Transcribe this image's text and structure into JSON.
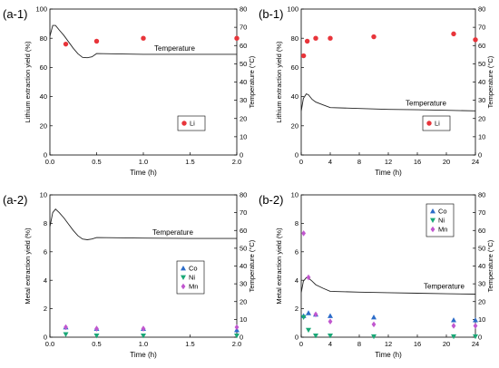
{
  "chart_data": [
    {
      "type": "scatter",
      "panel_label": "(a-1)",
      "xlabel": "Time (h)",
      "ylabel": "Lithium extraction yield (%)",
      "y2label": "Temperature (°C)",
      "xlim": [
        0,
        2
      ],
      "ylim": [
        0,
        100
      ],
      "y2lim": [
        0,
        80
      ],
      "xticks": [
        "0.0",
        "0.5",
        "1.0",
        "1.5",
        "2.0"
      ],
      "yticks": [
        "0",
        "20",
        "40",
        "60",
        "80",
        "100"
      ],
      "y2ticks": [
        "0",
        "10",
        "20",
        "30",
        "40",
        "50",
        "60",
        "70",
        "80"
      ],
      "legend_position": "middle-right",
      "series": [
        {
          "name": "Li",
          "marker": "circle",
          "color": "#e8343a",
          "x": [
            0.17,
            0.5,
            1.0,
            2.0
          ],
          "y": [
            76,
            78,
            80,
            80
          ]
        }
      ],
      "temperature_line": {
        "label": "Temperature",
        "x": [
          0,
          0.03,
          0.06,
          0.1,
          0.15,
          0.2,
          0.25,
          0.3,
          0.35,
          0.4,
          0.45,
          0.5,
          1.0,
          1.5,
          2.0
        ],
        "y": [
          65,
          71,
          71,
          68.5,
          65.5,
          62,
          58.5,
          55.5,
          53.5,
          53.3,
          53.8,
          55.6,
          55.2,
          55.2,
          55.2
        ]
      }
    },
    {
      "type": "scatter",
      "panel_label": "(b-1)",
      "xlabel": "Time (h)",
      "ylabel": "Lithium extraction yield (%)",
      "y2label": "Temperature (°C)",
      "xlim": [
        0,
        24
      ],
      "ylim": [
        0,
        100
      ],
      "y2lim": [
        0,
        80
      ],
      "xticks": [
        "0",
        "4",
        "8",
        "12",
        "16",
        "20",
        "24"
      ],
      "yticks": [
        "0",
        "20",
        "40",
        "60",
        "80",
        "100"
      ],
      "y2ticks": [
        "0",
        "10",
        "20",
        "30",
        "40",
        "50",
        "60",
        "70",
        "80"
      ],
      "legend_position": "middle-right",
      "series": [
        {
          "name": "Li",
          "marker": "circle",
          "color": "#e8343a",
          "x": [
            0.33,
            0.83,
            2,
            4,
            10,
            21,
            24
          ],
          "y": [
            68,
            78,
            80,
            80,
            81,
            83,
            79
          ]
        }
      ],
      "temperature_line": {
        "label": "Temperature",
        "x": [
          0,
          0.3,
          0.7,
          1.0,
          1.5,
          2,
          3,
          4,
          8,
          12,
          16,
          20,
          24
        ],
        "y": [
          24,
          31,
          33.5,
          33,
          30.5,
          29,
          27.5,
          26,
          25.5,
          25,
          24.8,
          24.5,
          24.2
        ]
      }
    },
    {
      "type": "scatter",
      "panel_label": "(a-2)",
      "xlabel": "Time (h)",
      "ylabel": "Metal extraction yield (%)",
      "y2label": "Temperature (°C)",
      "xlim": [
        0,
        2
      ],
      "ylim": [
        0,
        10
      ],
      "y2lim": [
        0,
        80
      ],
      "xticks": [
        "0.0",
        "0.5",
        "1.0",
        "1.5",
        "2.0"
      ],
      "yticks": [
        "0",
        "2",
        "4",
        "6",
        "8",
        "10"
      ],
      "y2ticks": [
        "0",
        "10",
        "20",
        "30",
        "40",
        "50",
        "60",
        "70",
        "80"
      ],
      "legend_position": "lower-right",
      "series": [
        {
          "name": "Co",
          "marker": "triangle-up",
          "color": "#2b6cc9",
          "x": [
            0.17,
            0.5,
            1.0,
            2.0
          ],
          "y": [
            0.7,
            0.6,
            0.6,
            0.5
          ]
        },
        {
          "name": "Ni",
          "marker": "triangle-down",
          "color": "#1aa877",
          "x": [
            0.17,
            0.5,
            1.0,
            2.0
          ],
          "y": [
            0.2,
            0.1,
            0.1,
            0.1
          ]
        },
        {
          "name": "Mn",
          "marker": "diamond",
          "color": "#c157cf",
          "x": [
            0.17,
            0.5,
            1.0,
            2.0
          ],
          "y": [
            0.7,
            0.6,
            0.6,
            0.7
          ]
        }
      ],
      "temperature_line": {
        "label": "Temperature",
        "x": [
          0,
          0.03,
          0.06,
          0.1,
          0.15,
          0.2,
          0.25,
          0.3,
          0.35,
          0.4,
          0.45,
          0.5,
          1.0,
          1.5,
          2.0
        ],
        "y": [
          62,
          70,
          72,
          70,
          67,
          63.5,
          60,
          57,
          55.2,
          54.8,
          55.2,
          56,
          55.7,
          55.5,
          55.5
        ]
      }
    },
    {
      "type": "scatter",
      "panel_label": "(b-2)",
      "xlabel": "Time (h)",
      "ylabel": "Metal extraction yield (%)",
      "y2label": "Temperature (°C)",
      "xlim": [
        0,
        24
      ],
      "ylim": [
        0,
        10
      ],
      "y2lim": [
        0,
        80
      ],
      "xticks": [
        "0",
        "4",
        "8",
        "12",
        "16",
        "20",
        "24"
      ],
      "yticks": [
        "0",
        "2",
        "4",
        "6",
        "8",
        "10"
      ],
      "y2ticks": [
        "0",
        "10",
        "20",
        "30",
        "40",
        "50",
        "60",
        "70",
        "80"
      ],
      "legend_position": "top-right",
      "series": [
        {
          "name": "Co",
          "marker": "triangle-up",
          "color": "#2b6cc9",
          "x": [
            0.33,
            1,
            2,
            4,
            10,
            21,
            24
          ],
          "y": [
            1.5,
            1.7,
            1.6,
            1.5,
            1.4,
            1.2,
            1.2
          ]
        },
        {
          "name": "Ni",
          "marker": "triangle-down",
          "color": "#1aa877",
          "x": [
            0.33,
            1,
            2,
            4,
            10,
            21,
            24
          ],
          "y": [
            1.4,
            0.5,
            0.1,
            0.1,
            0.05,
            0.05,
            0.05
          ]
        },
        {
          "name": "Mn",
          "marker": "diamond",
          "color": "#c157cf",
          "x": [
            0.33,
            1,
            2,
            4,
            10,
            21,
            24
          ],
          "y": [
            7.3,
            4.2,
            1.6,
            1.1,
            0.9,
            0.8,
            0.8
          ]
        }
      ],
      "temperature_line": {
        "label": "Temperature",
        "x": [
          0,
          0.3,
          0.7,
          1.0,
          1.5,
          2,
          3,
          4,
          8,
          12,
          16,
          20,
          24
        ],
        "y": [
          25,
          31.5,
          33.5,
          33.2,
          31.5,
          29.5,
          27.5,
          25.8,
          25.3,
          25,
          24.7,
          24.4,
          24.2
        ]
      }
    }
  ]
}
